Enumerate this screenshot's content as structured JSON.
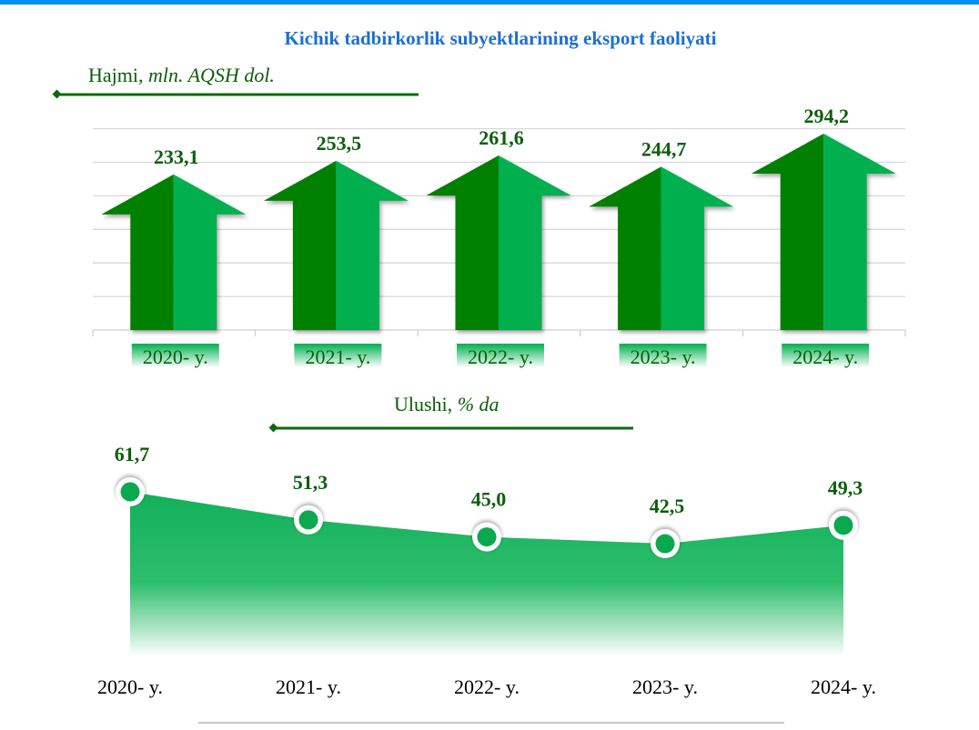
{
  "title": "Kichik tadbirkorlik subyektlarining eksport faoliyati",
  "colors": {
    "top_bar": "#0090f0",
    "title": "#1c6fd1",
    "label_text": "#0b5e0b",
    "arrow_dark": "#008000",
    "arrow_light": "#00b050",
    "area_fill": "#1db55f",
    "gridline": "#d9d9d9"
  },
  "chart_data": [
    {
      "type": "bar",
      "title": "Hajmi, mln. AQSH dol.",
      "label_main": "Hajmi,",
      "label_unit": "mln. AQSH dol.",
      "categories": [
        "2020- y.",
        "2021- y.",
        "2022- y.",
        "2023- y.",
        "2024- y."
      ],
      "values": [
        233.1,
        253.5,
        261.6,
        244.7,
        294.2
      ],
      "value_labels": [
        "233,1",
        "253,5",
        "261,6",
        "244,7",
        "294,2"
      ],
      "grid": true,
      "marker": "up-arrow"
    },
    {
      "type": "area",
      "title": "Ulushi, % da",
      "label_main": "Ulushi,",
      "label_unit": "% da",
      "categories": [
        "2020- y.",
        "2021- y.",
        "2022- y.",
        "2023- y.",
        "2024- y."
      ],
      "values": [
        61.7,
        51.3,
        45.0,
        42.5,
        49.3
      ],
      "value_labels": [
        "61,7",
        "51,3",
        "45,0",
        "42,5",
        "49,3"
      ],
      "grid": false
    }
  ]
}
